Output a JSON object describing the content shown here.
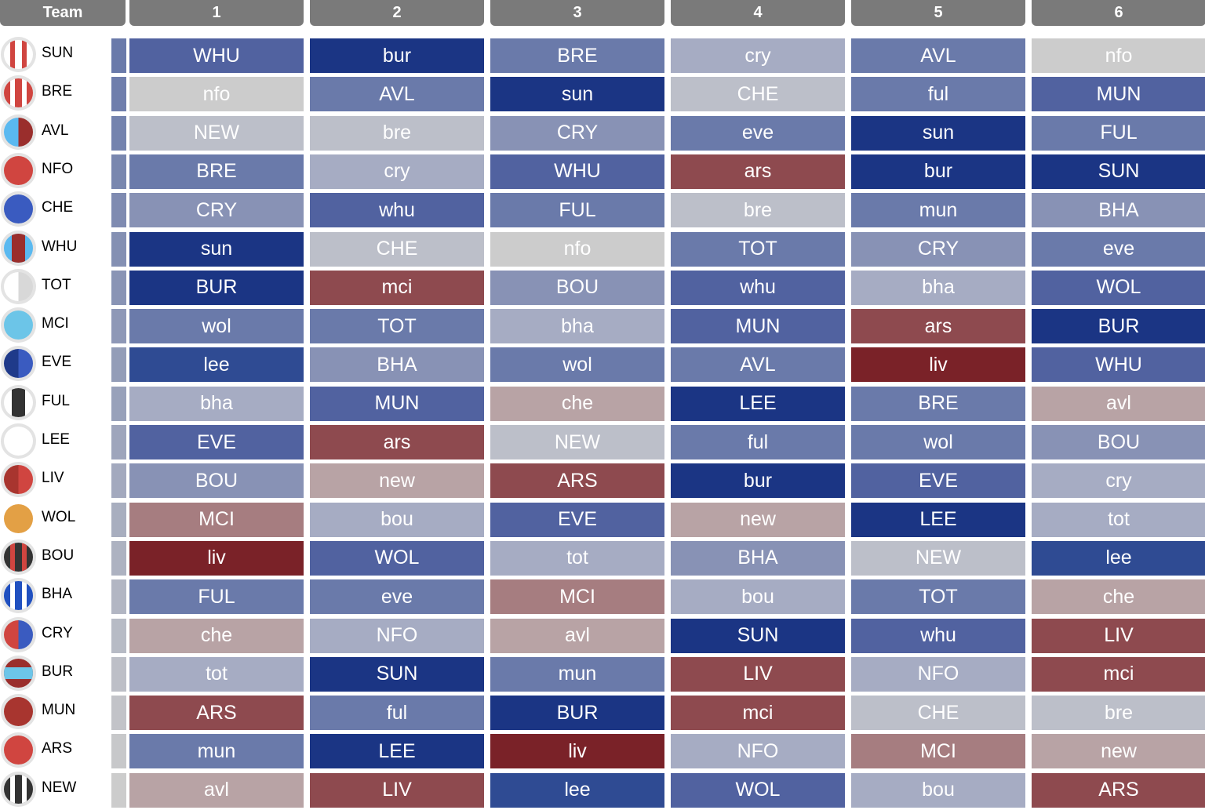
{
  "header": {
    "team_label": "Team",
    "gameweeks": [
      "1",
      "2",
      "3",
      "4",
      "5",
      "6"
    ]
  },
  "palette": {
    "b5": "#1b3584",
    "b4": "#2f4b93",
    "b3": "#5162a0",
    "b2": "#6a7aaa",
    "b1": "#8892b5",
    "b0": "#a6acc3",
    "n": "#bcbfc9",
    "g": "#cccccc",
    "r1": "#b8a3a5",
    "r2": "#a67d80",
    "r3": "#8e4a4f",
    "r4": "#7a2228"
  },
  "teams": [
    {
      "name": "SUN",
      "crest": {
        "type": "stripes",
        "colors": [
          "#ffffff",
          "#d04540"
        ]
      },
      "fixtures": [
        [
          "WHU",
          "b3"
        ],
        [
          "bur",
          "b5"
        ],
        [
          "BRE",
          "b2"
        ],
        [
          "cry",
          "b0"
        ],
        [
          "AVL",
          "b2"
        ],
        [
          "nfo",
          "g"
        ]
      ]
    },
    {
      "name": "BRE",
      "crest": {
        "type": "stripes",
        "colors": [
          "#d04540",
          "#ffffff"
        ]
      },
      "fixtures": [
        [
          "nfo",
          "g"
        ],
        [
          "AVL",
          "b2"
        ],
        [
          "sun",
          "b5"
        ],
        [
          "CHE",
          "n"
        ],
        [
          "ful",
          "b2"
        ],
        [
          "MUN",
          "b3"
        ]
      ]
    },
    {
      "name": "AVL",
      "crest": {
        "type": "halves",
        "colors": [
          "#5ab9f0",
          "#9a2e2c"
        ]
      },
      "fixtures": [
        [
          "NEW",
          "n"
        ],
        [
          "bre",
          "n"
        ],
        [
          "CRY",
          "b1"
        ],
        [
          "eve",
          "b2"
        ],
        [
          "sun",
          "b5"
        ],
        [
          "FUL",
          "b2"
        ]
      ]
    },
    {
      "name": "NFO",
      "crest": {
        "type": "solid",
        "colors": [
          "#d04540"
        ]
      },
      "fixtures": [
        [
          "BRE",
          "b2"
        ],
        [
          "cry",
          "b0"
        ],
        [
          "WHU",
          "b3"
        ],
        [
          "ars",
          "r3"
        ],
        [
          "bur",
          "b5"
        ],
        [
          "SUN",
          "b5"
        ]
      ]
    },
    {
      "name": "CHE",
      "crest": {
        "type": "solid",
        "colors": [
          "#3a5bc0"
        ]
      },
      "fixtures": [
        [
          "CRY",
          "b1"
        ],
        [
          "whu",
          "b3"
        ],
        [
          "FUL",
          "b2"
        ],
        [
          "bre",
          "n"
        ],
        [
          "mun",
          "b2"
        ],
        [
          "BHA",
          "b1"
        ]
      ]
    },
    {
      "name": "WHU",
      "crest": {
        "type": "center",
        "colors": [
          "#5ab9f0",
          "#9a2e2c"
        ]
      },
      "fixtures": [
        [
          "sun",
          "b5"
        ],
        [
          "CHE",
          "n"
        ],
        [
          "nfo",
          "g"
        ],
        [
          "TOT",
          "b2"
        ],
        [
          "CRY",
          "b1"
        ],
        [
          "eve",
          "b2"
        ]
      ]
    },
    {
      "name": "TOT",
      "crest": {
        "type": "halves",
        "colors": [
          "#ffffff",
          "#d8d8d8"
        ]
      },
      "fixtures": [
        [
          "BUR",
          "b5"
        ],
        [
          "mci",
          "r3"
        ],
        [
          "BOU",
          "b1"
        ],
        [
          "whu",
          "b3"
        ],
        [
          "bha",
          "b0"
        ],
        [
          "WOL",
          "b3"
        ]
      ]
    },
    {
      "name": "MCI",
      "crest": {
        "type": "solid",
        "colors": [
          "#6cc5e8"
        ]
      },
      "fixtures": [
        [
          "wol",
          "b2"
        ],
        [
          "TOT",
          "b2"
        ],
        [
          "bha",
          "b0"
        ],
        [
          "MUN",
          "b3"
        ],
        [
          "ars",
          "r3"
        ],
        [
          "BUR",
          "b5"
        ]
      ]
    },
    {
      "name": "EVE",
      "crest": {
        "type": "halves",
        "colors": [
          "#1f3a8a",
          "#3a5bc0"
        ]
      },
      "fixtures": [
        [
          "lee",
          "b4"
        ],
        [
          "BHA",
          "b1"
        ],
        [
          "wol",
          "b2"
        ],
        [
          "AVL",
          "b2"
        ],
        [
          "liv",
          "r4"
        ],
        [
          "WHU",
          "b3"
        ]
      ]
    },
    {
      "name": "FUL",
      "crest": {
        "type": "center",
        "colors": [
          "#333333",
          "#ffffff"
        ]
      },
      "fixtures": [
        [
          "bha",
          "b0"
        ],
        [
          "MUN",
          "b3"
        ],
        [
          "che",
          "r1"
        ],
        [
          "LEE",
          "b5"
        ],
        [
          "BRE",
          "b2"
        ],
        [
          "avl",
          "r1"
        ]
      ]
    },
    {
      "name": "LEE",
      "crest": {
        "type": "solid",
        "colors": [
          "#ffffff"
        ]
      },
      "fixtures": [
        [
          "EVE",
          "b3"
        ],
        [
          "ars",
          "r3"
        ],
        [
          "NEW",
          "n"
        ],
        [
          "ful",
          "b2"
        ],
        [
          "wol",
          "b2"
        ],
        [
          "BOU",
          "b1"
        ]
      ]
    },
    {
      "name": "LIV",
      "crest": {
        "type": "halves",
        "colors": [
          "#a8352f",
          "#d04540"
        ]
      },
      "fixtures": [
        [
          "BOU",
          "b1"
        ],
        [
          "new",
          "r1"
        ],
        [
          "ARS",
          "r3"
        ],
        [
          "bur",
          "b5"
        ],
        [
          "EVE",
          "b3"
        ],
        [
          "cry",
          "b0"
        ]
      ]
    },
    {
      "name": "WOL",
      "crest": {
        "type": "plain",
        "colors": [
          "#e3a045"
        ]
      },
      "fixtures": [
        [
          "MCI",
          "r2"
        ],
        [
          "bou",
          "b0"
        ],
        [
          "EVE",
          "b3"
        ],
        [
          "new",
          "r1"
        ],
        [
          "LEE",
          "b5"
        ],
        [
          "tot",
          "b0"
        ]
      ]
    },
    {
      "name": "BOU",
      "crest": {
        "type": "stripes",
        "colors": [
          "#333333",
          "#d04540"
        ]
      },
      "fixtures": [
        [
          "liv",
          "r4"
        ],
        [
          "WOL",
          "b3"
        ],
        [
          "tot",
          "b0"
        ],
        [
          "BHA",
          "b1"
        ],
        [
          "NEW",
          "n"
        ],
        [
          "lee",
          "b4"
        ]
      ]
    },
    {
      "name": "BHA",
      "crest": {
        "type": "stripes",
        "colors": [
          "#2050c0",
          "#ffffff"
        ]
      },
      "fixtures": [
        [
          "FUL",
          "b2"
        ],
        [
          "eve",
          "b2"
        ],
        [
          "MCI",
          "r2"
        ],
        [
          "bou",
          "b0"
        ],
        [
          "TOT",
          "b2"
        ],
        [
          "che",
          "r1"
        ]
      ]
    },
    {
      "name": "CRY",
      "crest": {
        "type": "halves",
        "colors": [
          "#d04540",
          "#3a5bc0"
        ]
      },
      "fixtures": [
        [
          "che",
          "r1"
        ],
        [
          "NFO",
          "b0"
        ],
        [
          "avl",
          "r1"
        ],
        [
          "SUN",
          "b5"
        ],
        [
          "whu",
          "b3"
        ],
        [
          "LIV",
          "r3"
        ]
      ]
    },
    {
      "name": "BUR",
      "crest": {
        "type": "hoop",
        "colors": [
          "#9a2e2c",
          "#6cc5e8"
        ]
      },
      "fixtures": [
        [
          "tot",
          "b0"
        ],
        [
          "SUN",
          "b5"
        ],
        [
          "mun",
          "b2"
        ],
        [
          "LIV",
          "r3"
        ],
        [
          "NFO",
          "b0"
        ],
        [
          "mci",
          "r3"
        ]
      ]
    },
    {
      "name": "MUN",
      "crest": {
        "type": "solid",
        "colors": [
          "#a8352f"
        ]
      },
      "fixtures": [
        [
          "ARS",
          "r3"
        ],
        [
          "ful",
          "b2"
        ],
        [
          "BUR",
          "b5"
        ],
        [
          "mci",
          "r3"
        ],
        [
          "CHE",
          "n"
        ],
        [
          "bre",
          "n"
        ]
      ]
    },
    {
      "name": "ARS",
      "crest": {
        "type": "solid",
        "colors": [
          "#d04540"
        ]
      },
      "fixtures": [
        [
          "mun",
          "b2"
        ],
        [
          "LEE",
          "b5"
        ],
        [
          "liv",
          "r4"
        ],
        [
          "NFO",
          "b0"
        ],
        [
          "MCI",
          "r2"
        ],
        [
          "new",
          "r1"
        ]
      ]
    },
    {
      "name": "NEW",
      "crest": {
        "type": "stripes",
        "colors": [
          "#333333",
          "#ffffff"
        ]
      },
      "fixtures": [
        [
          "avl",
          "r1"
        ],
        [
          "LIV",
          "r3"
        ],
        [
          "lee",
          "b4"
        ],
        [
          "WOL",
          "b3"
        ],
        [
          "bou",
          "b0"
        ],
        [
          "ARS",
          "r3"
        ]
      ]
    }
  ]
}
